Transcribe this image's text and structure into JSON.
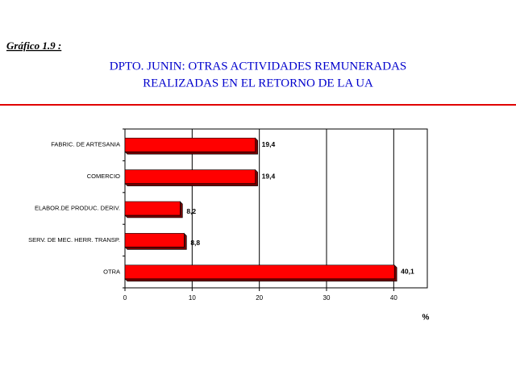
{
  "chart_data": {
    "type": "hbar",
    "figure_label": "Gráfico 1.9 :",
    "title": [
      "DPTO. JUNIN: OTRAS ACTIVIDADES REMUNERADAS",
      "REALIZADAS EN EL RETORNO DE LA UA"
    ],
    "categories": [
      "FABRIC. DE ARTESANIA",
      "COMERCIO",
      "ELABOR.DE PRODUC. DERIV.",
      "SERV. DE MEC. HERR. TRANSP.",
      "OTRA"
    ],
    "values": [
      19.4,
      19.4,
      8.2,
      8.8,
      40.1
    ],
    "value_labels": [
      "19,4",
      "19,4",
      "8,2",
      "8,8",
      "40,1"
    ],
    "color": "#ff0000",
    "x_label": "%",
    "xlim": [
      0,
      45
    ],
    "xticks": [
      0,
      10,
      20,
      30,
      40
    ],
    "grid": true
  }
}
